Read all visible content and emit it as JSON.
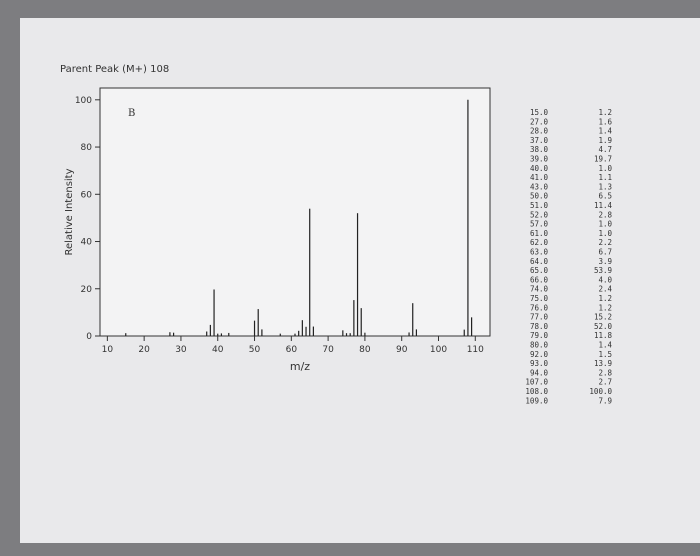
{
  "chart_data": {
    "type": "stick",
    "title": "Parent Peak (M+) 108",
    "annotation": "B",
    "x_label": "m/z",
    "y_label": "Relative Intensity",
    "x": [
      15,
      27,
      28,
      37,
      38,
      39,
      40,
      41,
      43,
      50,
      51,
      52,
      57,
      61,
      62,
      63,
      64,
      65,
      66,
      74,
      75,
      76,
      77,
      78,
      79,
      80,
      92,
      93,
      94,
      107,
      108,
      109
    ],
    "x_labels": [
      "15.0",
      "27.0",
      "28.0",
      "37.0",
      "38.0",
      "39.0",
      "40.0",
      "41.0",
      "43.0",
      "50.0",
      "51.0",
      "52.0",
      "57.0",
      "61.0",
      "62.0",
      "63.0",
      "64.0",
      "65.0",
      "66.0",
      "74.0",
      "75.0",
      "76.0",
      "77.0",
      "78.0",
      "79.0",
      "80.0",
      "92.0",
      "93.0",
      "94.0",
      "107.0",
      "108.0",
      "109.0"
    ],
    "values": [
      1.2,
      1.6,
      1.4,
      1.9,
      4.7,
      19.7,
      1.0,
      1.1,
      1.3,
      6.5,
      11.4,
      2.8,
      1.0,
      1.0,
      2.2,
      6.7,
      3.9,
      53.9,
      4.0,
      2.4,
      1.2,
      1.2,
      15.2,
      52.0,
      11.8,
      1.4,
      1.5,
      13.9,
      2.8,
      2.7,
      100.0,
      7.9
    ],
    "value_labels": [
      "1.2",
      "1.6",
      "1.4",
      "1.9",
      "4.7",
      "19.7",
      "1.0",
      "1.1",
      "1.3",
      "6.5",
      "11.4",
      "2.8",
      "1.0",
      "1.0",
      "2.2",
      "6.7",
      "3.9",
      "53.9",
      "4.0",
      "2.4",
      "1.2",
      "1.2",
      "15.2",
      "52.0",
      "11.8",
      "1.4",
      "1.5",
      "13.9",
      "2.8",
      "2.7",
      "100.0",
      "7.9"
    ],
    "color": "#222222",
    "xlim": [
      8,
      114
    ],
    "ylim": [
      0,
      105
    ],
    "xticks": [
      10,
      20,
      30,
      40,
      50,
      60,
      70,
      80,
      90,
      100,
      110
    ],
    "yticks": [
      0,
      20,
      40,
      60,
      80,
      100
    ]
  }
}
